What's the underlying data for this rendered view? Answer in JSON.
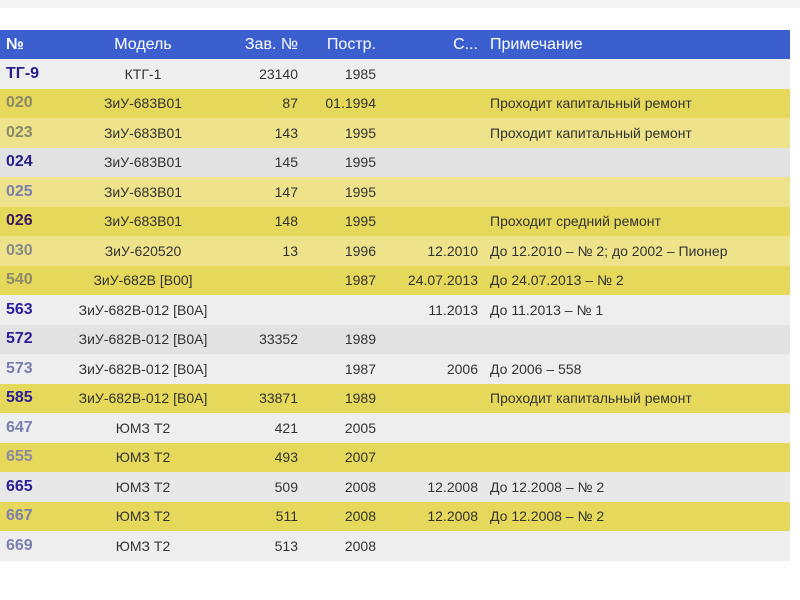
{
  "header": [
    "№",
    "Модель",
    "Зав. №",
    "Постр.",
    "С...",
    "Примечание"
  ],
  "rows": [
    {
      "num": "ТГ-9",
      "model": "КТГ-1",
      "serial": "23140",
      "built": "1985",
      "since": "",
      "note": "",
      "bg": "#eeeeee",
      "numColor": "#27208a"
    },
    {
      "num": "020",
      "model": "ЗиУ-683В01",
      "serial": "87",
      "built": "01.1994",
      "since": "",
      "note": "Проходит капитальный ремонт",
      "bg": "#e5d85a",
      "numColor": "#8a8a6a"
    },
    {
      "num": "023",
      "model": "ЗиУ-683В01",
      "serial": "143",
      "built": "1995",
      "since": "",
      "note": "Проходит капитальный ремонт",
      "bg": "#eee38a",
      "numColor": "#8a8a6a"
    },
    {
      "num": "024",
      "model": "ЗиУ-683В01",
      "serial": "145",
      "built": "1995",
      "since": "",
      "note": "",
      "bg": "#e2e2e2",
      "numColor": "#27208a"
    },
    {
      "num": "025",
      "model": "ЗиУ-683В01",
      "serial": "147",
      "built": "1995",
      "since": "",
      "note": "",
      "bg": "#eee38a",
      "numColor": "#7a7fb0"
    },
    {
      "num": "026",
      "model": "ЗиУ-683В01",
      "serial": "148",
      "built": "1995",
      "since": "",
      "note": "Проходит средний ремонт",
      "bg": "#e5d85a",
      "numColor": "#3a1a5a"
    },
    {
      "num": "030",
      "model": "ЗиУ-620520",
      "serial": "13",
      "built": "1996",
      "since": "12.2010",
      "note": "До 12.2010 – № 2; до 2002 – Пионер",
      "bg": "#eee38a",
      "numColor": "#8a8a8a"
    },
    {
      "num": "540",
      "model": "ЗиУ-682В [В00]",
      "serial": "",
      "built": "1987",
      "since": "24.07.2013",
      "note": "До 24.07.2013 – № 2",
      "bg": "#e5d85a",
      "numColor": "#8a8a6a"
    },
    {
      "num": "563",
      "model": "ЗиУ-682В-012 [В0А]",
      "serial": "",
      "built": "",
      "since": "11.2013",
      "note": "До 11.2013 – № 1",
      "bg": "#eeeeee",
      "numColor": "#2a209a"
    },
    {
      "num": "572",
      "model": "ЗиУ-682В-012 [В0А]",
      "serial": "33352",
      "built": "1989",
      "since": "",
      "note": "",
      "bg": "#e2e2e2",
      "numColor": "#2a209a"
    },
    {
      "num": "573",
      "model": "ЗиУ-682В-012 [В0А]",
      "serial": "",
      "built": "1987",
      "since": "2006",
      "note": "До 2006 – 558",
      "bg": "#eeeeee",
      "numColor": "#7a7fb0"
    },
    {
      "num": "585",
      "model": "ЗиУ-682В-012 [В0А]",
      "serial": "33871",
      "built": "1989",
      "since": "",
      "note": "Проходит капитальный ремонт",
      "bg": "#e5d85a",
      "numColor": "#2a209a"
    },
    {
      "num": "647",
      "model": "ЮМЗ Т2",
      "serial": "421",
      "built": "2005",
      "since": "",
      "note": "",
      "bg": "#eeeeee",
      "numColor": "#7a7fb0"
    },
    {
      "num": "655",
      "model": "ЮМЗ Т2",
      "serial": "493",
      "built": "2007",
      "since": "",
      "note": "",
      "bg": "#e5d85a",
      "numColor": "#8a8aa0"
    },
    {
      "num": "665",
      "model": "ЮМЗ Т2",
      "serial": "509",
      "built": "2008",
      "since": "12.2008",
      "note": "До 12.2008 – № 2",
      "bg": "#e8e8e8",
      "numColor": "#2a209a"
    },
    {
      "num": "667",
      "model": "ЮМЗ Т2",
      "serial": "511",
      "built": "2008",
      "since": "12.2008",
      "note": "До 12.2008 – № 2",
      "bg": "#e5d85a",
      "numColor": "#7a7fb0"
    },
    {
      "num": "669",
      "model": "ЮМЗ Т2",
      "serial": "513",
      "built": "2008",
      "since": "",
      "note": "",
      "bg": "#eeeeee",
      "numColor": "#7a7fb0"
    }
  ]
}
